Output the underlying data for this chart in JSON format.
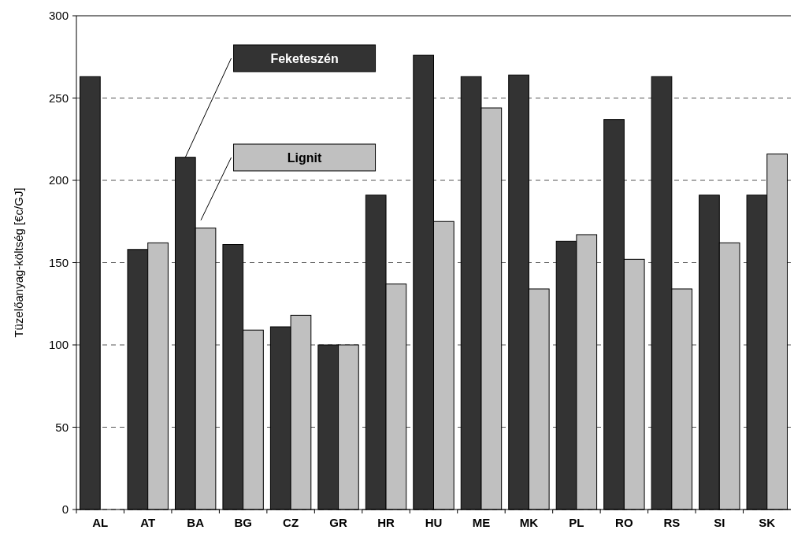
{
  "chart_data": {
    "type": "bar",
    "ylabel": "Tüzelőanyag-költség [€c/GJ]",
    "categories": [
      "AL",
      "AT",
      "BA",
      "BG",
      "CZ",
      "GR",
      "HR",
      "HU",
      "ME",
      "MK",
      "PL",
      "RO",
      "RS",
      "SI",
      "SK"
    ],
    "series": [
      {
        "name": "Feketeszén",
        "color": "#333333",
        "values": [
          263,
          158,
          214,
          161,
          111,
          100,
          191,
          276,
          263,
          264,
          163,
          237,
          263,
          191,
          191
        ]
      },
      {
        "name": "Lignit",
        "color": "#c0c0c0",
        "values": [
          null,
          162,
          171,
          109,
          118,
          100,
          137,
          175,
          244,
          134,
          167,
          152,
          134,
          162,
          216
        ]
      }
    ],
    "ylim": [
      0,
      300
    ],
    "yticks": [
      0,
      50,
      100,
      150,
      200,
      250,
      300
    ],
    "grid": "y",
    "legend": "top"
  }
}
